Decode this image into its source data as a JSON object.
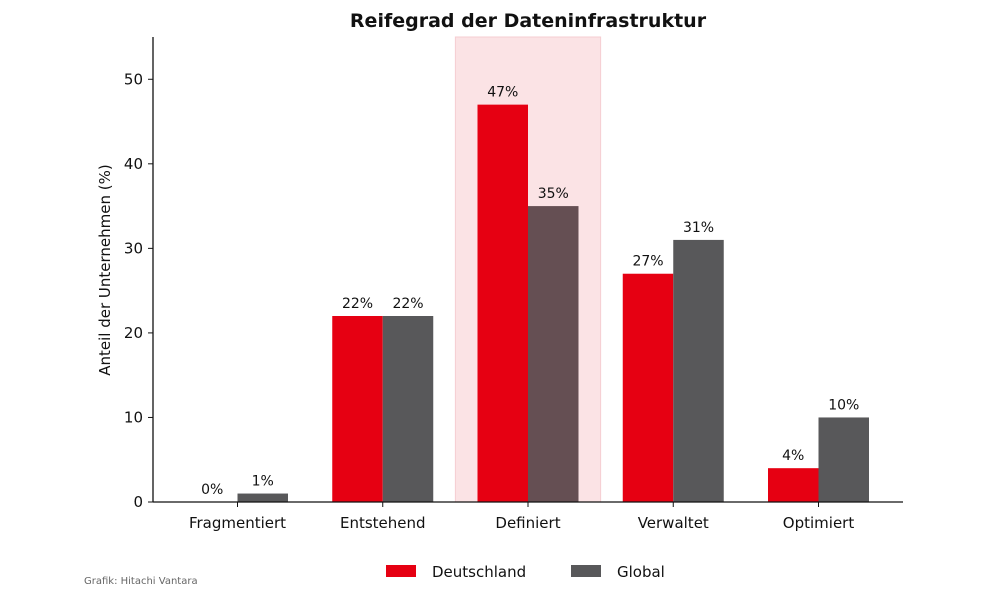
{
  "chart_data": {
    "type": "bar",
    "title": "Reifegrad der Dateninfrastruktur",
    "xlabel": "",
    "ylabel": "Anteil der Unternehmen (%)",
    "ylim": [
      0,
      55
    ],
    "yticks": [
      0,
      10,
      20,
      30,
      40,
      50
    ],
    "grid": false,
    "categories": [
      "Fragmentiert",
      "Entstehend",
      "Definiert",
      "Verwaltet",
      "Optimiert"
    ],
    "highlight_category": "Definiert",
    "series": [
      {
        "name": "Deutschland",
        "color": "#e60012",
        "values": [
          0,
          22,
          47,
          27,
          4
        ],
        "labels": [
          "0%",
          "22%",
          "47%",
          "27%",
          "4%"
        ]
      },
      {
        "name": "Global",
        "color": "#58585a",
        "values": [
          1,
          22,
          35,
          31,
          10
        ],
        "labels": [
          "1%",
          "22%",
          "35%",
          "31%",
          "10%"
        ]
      }
    ],
    "highlight_color": "#fbe3e5",
    "highlight_bar_color": "#654f53",
    "legend_position": "bottom-center"
  },
  "footer": "Grafik: Hitachi Vantara"
}
